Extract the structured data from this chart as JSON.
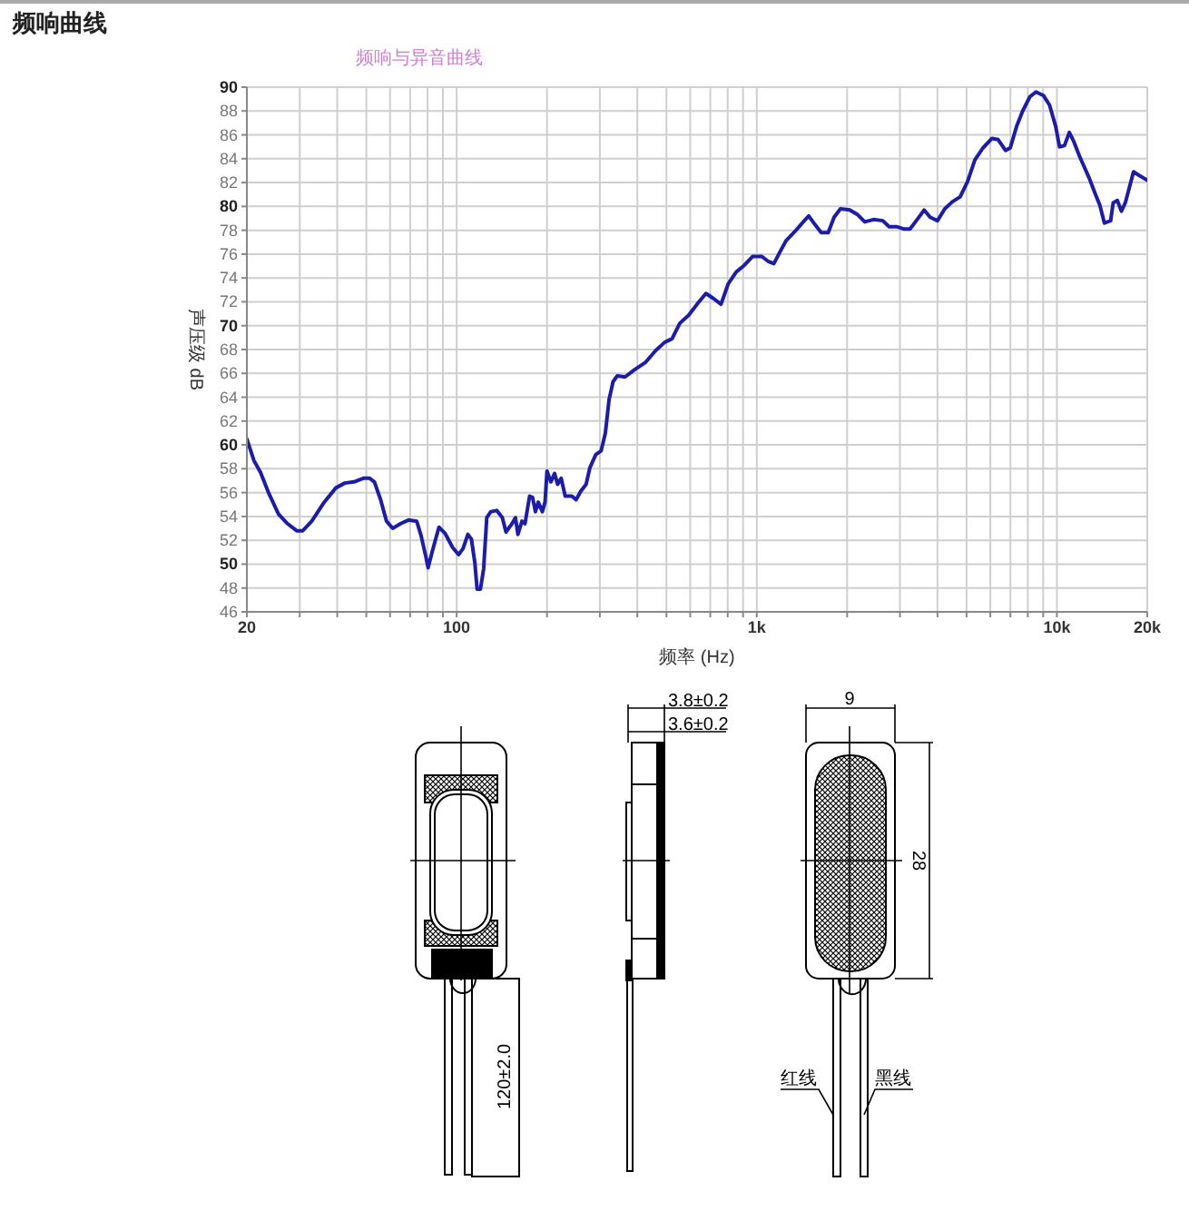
{
  "chart_data": {
    "type": "line",
    "title": "频响曲线",
    "subtitle": "频响与异音曲线",
    "xlabel": "频率 (Hz)",
    "ylabel": "声压级 dB",
    "annotations": [
      "3.8±0.2",
      "3.6±0.2",
      "9",
      "28",
      "120±2.0",
      "红线",
      "黑线"
    ],
    "x": [
      20,
      21.1,
      22.2,
      23.7,
      25.5,
      27.3,
      29.3,
      30.7,
      32.9,
      36.2,
      39.6,
      42.4,
      45.5,
      48.9,
      51.3,
      53.2,
      55.8,
      58.4,
      61.2,
      65.1,
      69.1,
      73.6,
      76.1,
      79,
      80.3,
      83,
      87.3,
      91.4,
      96.9,
      101.5,
      105,
      109,
      112,
      115,
      117,
      120,
      123,
      126,
      130,
      136,
      142,
      146,
      153,
      157,
      160,
      165,
      169,
      175,
      179,
      183,
      187,
      193,
      197,
      200,
      206,
      212,
      217,
      223,
      230,
      242,
      250,
      259,
      270,
      278,
      291,
      303,
      313,
      322,
      332,
      343,
      364,
      391,
      425,
      460,
      493,
      522,
      554,
      594,
      637,
      677,
      715,
      760,
      803,
      854,
      903,
      968,
      1040,
      1090,
      1140,
      1190,
      1250,
      1340,
      1440,
      1490,
      1560,
      1640,
      1730,
      1810,
      1900,
      2040,
      2170,
      2290,
      2450,
      2630,
      2760,
      2920,
      3100,
      3240,
      3400,
      3610,
      3780,
      4000,
      4230,
      4490,
      4760,
      5040,
      5330,
      5670,
      6080,
      6370,
      6740,
      6990,
      7340,
      7690,
      8130,
      8520,
      9020,
      9450,
      9910,
      10200,
      10600,
      11000,
      11400,
      11900,
      12800,
      13400,
      13900,
      14400,
      15100,
      15400,
      15900,
      16400,
      16900,
      18000,
      18800,
      20000
    ],
    "values": [
      60.5,
      58.7,
      57.7,
      55.9,
      54.2,
      53.4,
      52.8,
      52.8,
      53.6,
      55.2,
      56.4,
      56.8,
      56.9,
      57.2,
      57.2,
      56.9,
      55.4,
      53.6,
      53.0,
      53.4,
      53.7,
      53.6,
      52.4,
      50.6,
      49.7,
      51.1,
      53.1,
      52.6,
      51.4,
      50.8,
      51.3,
      52.5,
      52.1,
      50.1,
      47.9,
      47.9,
      49.6,
      53.9,
      54.4,
      54.5,
      53.9,
      52.7,
      53.4,
      53.9,
      52.5,
      53.6,
      53.4,
      55.7,
      55.6,
      54.4,
      55.2,
      54.4,
      55.2,
      57.8,
      56.9,
      57.6,
      56.7,
      57.2,
      55.7,
      55.7,
      55.4,
      56.1,
      56.7,
      58.1,
      59.2,
      59.5,
      61.0,
      63.8,
      65.3,
      65.8,
      65.7,
      66.3,
      66.9,
      67.9,
      68.6,
      68.9,
      70.2,
      70.9,
      71.9,
      72.7,
      72.3,
      71.8,
      73.5,
      74.5,
      75.0,
      75.8,
      75.8,
      75.4,
      75.2,
      76.1,
      77.1,
      77.9,
      78.8,
      79.2,
      78.5,
      77.8,
      77.8,
      79.1,
      79.8,
      79.7,
      79.3,
      78.7,
      78.9,
      78.8,
      78.3,
      78.3,
      78.1,
      78.1,
      78.8,
      79.7,
      79.1,
      78.8,
      79.8,
      80.4,
      80.8,
      82.1,
      83.9,
      84.9,
      85.7,
      85.6,
      84.7,
      84.9,
      86.7,
      88.0,
      89.2,
      89.6,
      89.3,
      88.5,
      86.7,
      85.0,
      85.1,
      86.2,
      85.4,
      84.2,
      82.4,
      81.1,
      80.1,
      78.6,
      78.8,
      80.3,
      80.5,
      79.6,
      80.3,
      82.9,
      82.6,
      82.2
    ],
    "color": "#1c1caa",
    "log": "x",
    "grid": true,
    "xlim": [
      20,
      20000
    ],
    "xticks": [
      20,
      {
        "value": 30,
        "label": null
      },
      {
        "value": 40,
        "label": null
      },
      {
        "value": 50,
        "label": null
      },
      {
        "value": 60,
        "label": null
      },
      {
        "value": 70,
        "label": null
      },
      {
        "value": 80,
        "label": null
      },
      {
        "value": 90,
        "label": null
      },
      100,
      {
        "value": 200,
        "label": null
      },
      {
        "value": 300,
        "label": null
      },
      {
        "value": 400,
        "label": null
      },
      {
        "value": 500,
        "label": null
      },
      {
        "value": 600,
        "label": null
      },
      {
        "value": 700,
        "label": null
      },
      {
        "value": 800,
        "label": null
      },
      {
        "value": 900,
        "label": null
      },
      {
        "value": 1000,
        "label": "1k"
      },
      {
        "value": 2000,
        "label": null
      },
      {
        "value": 3000,
        "label": null
      },
      {
        "value": 4000,
        "label": null
      },
      {
        "value": 5000,
        "label": null
      },
      {
        "value": 6000,
        "label": null
      },
      {
        "value": 7000,
        "label": null
      },
      {
        "value": 8000,
        "label": null
      },
      {
        "value": 9000,
        "label": null
      },
      {
        "value": 10000,
        "label": "10k"
      },
      {
        "value": 20000,
        "label": "20k"
      }
    ],
    "ylim": [
      46,
      90
    ],
    "yticks": [
      46,
      48,
      50,
      52,
      54,
      56,
      58,
      60,
      62,
      64,
      66,
      68,
      70,
      72,
      74,
      76,
      78,
      80,
      82,
      84,
      86,
      88,
      90
    ]
  }
}
